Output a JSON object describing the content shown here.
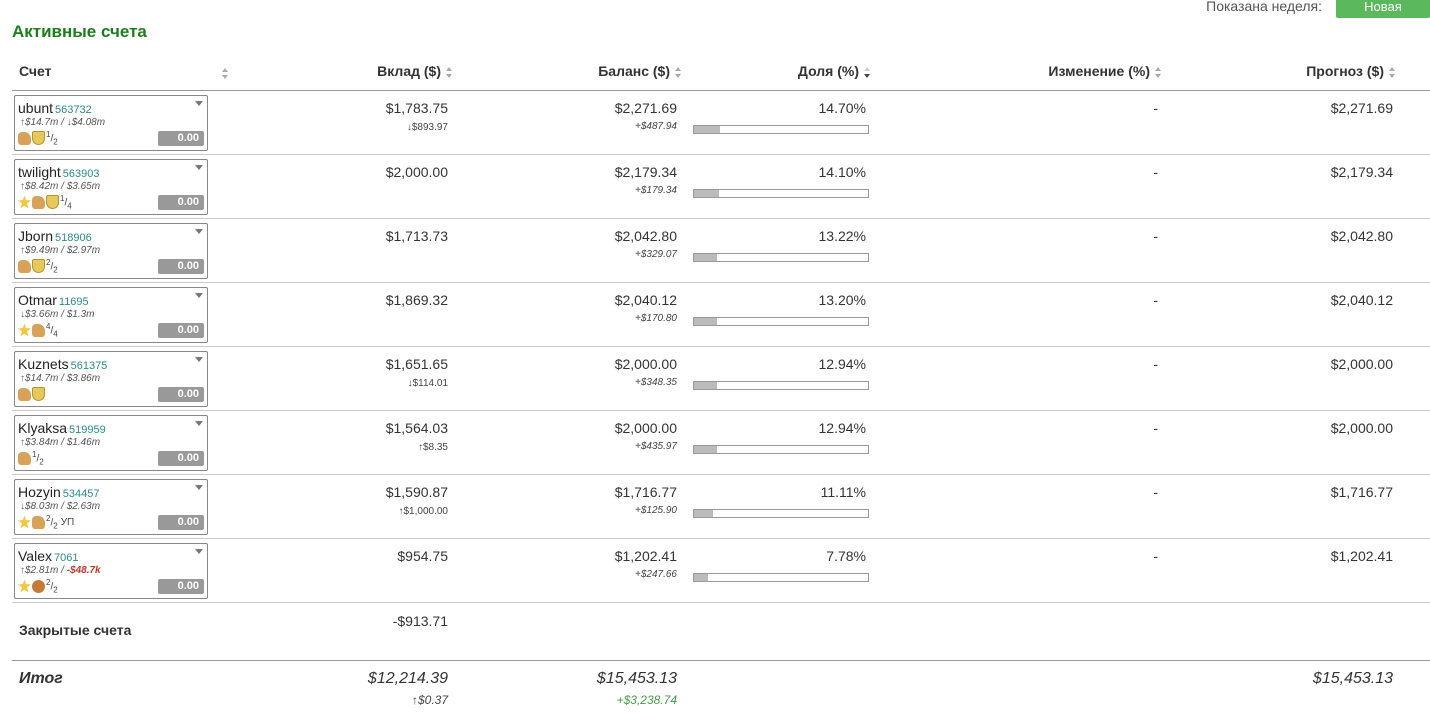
{
  "header": {
    "week_label": "Показана неделя:",
    "new_button": "Новая"
  },
  "title": "Активные счета",
  "columns": [
    "Счет",
    "Вклад ($)",
    "Баланс ($)",
    "Доля (%)",
    "Изменение (%)",
    "Прогноз ($)"
  ],
  "rows": [
    {
      "name": "ubunt",
      "id": "563732",
      "stats_a": "↑$14.7m / ↓$4.08m",
      "stats_b": "",
      "icons": [
        "thumb-icon",
        "shield-icon"
      ],
      "frac_num": "1",
      "frac_den": "2",
      "extra": "",
      "score": "0.00",
      "deposit": "$1,783.75",
      "deposit_delta": "↓$893.97",
      "balance": "$2,271.69",
      "balance_delta": "+$487.94",
      "share": "14.70%",
      "share_value": 14.7,
      "change": "-",
      "forecast": "$2,271.69"
    },
    {
      "name": "twilight",
      "id": "563903",
      "stats_a": "↑$8.42m / $3.65m",
      "stats_b": "",
      "icons": [
        "star-icon",
        "thumb-icon",
        "shield-icon"
      ],
      "frac_num": "1",
      "frac_den": "4",
      "extra": "",
      "score": "0.00",
      "deposit": "$2,000.00",
      "deposit_delta": "",
      "balance": "$2,179.34",
      "balance_delta": "+$179.34",
      "share": "14.10%",
      "share_value": 14.1,
      "change": "-",
      "forecast": "$2,179.34"
    },
    {
      "name": "Jborn",
      "id": "518906",
      "stats_a": "↑$9.49m / $2.97m",
      "stats_b": "",
      "icons": [
        "thumb-icon",
        "shield-icon"
      ],
      "frac_num": "2",
      "frac_den": "2",
      "extra": "",
      "score": "0.00",
      "deposit": "$1,713.73",
      "deposit_delta": "",
      "balance": "$2,042.80",
      "balance_delta": "+$329.07",
      "share": "13.22%",
      "share_value": 13.22,
      "change": "-",
      "forecast": "$2,042.80"
    },
    {
      "name": "Otmar",
      "id": "11695",
      "stats_a": "↓$3.66m / $1.3m",
      "stats_b": "",
      "icons": [
        "star-icon",
        "thumb-icon"
      ],
      "frac_num": "4",
      "frac_den": "4",
      "extra": "",
      "score": "0.00",
      "deposit": "$1,869.32",
      "deposit_delta": "",
      "balance": "$2,040.12",
      "balance_delta": "+$170.80",
      "share": "13.20%",
      "share_value": 13.2,
      "change": "-",
      "forecast": "$2,040.12"
    },
    {
      "name": "Kuznets",
      "id": "561375",
      "stats_a": "↑$14.7m / $3.86m",
      "stats_b": "",
      "icons": [
        "thumb-icon",
        "shield-icon"
      ],
      "frac_num": "",
      "frac_den": "",
      "extra": "",
      "score": "0.00",
      "deposit": "$1,651.65",
      "deposit_delta": "↓$114.01",
      "balance": "$2,000.00",
      "balance_delta": "+$348.35",
      "share": "12.94%",
      "share_value": 12.94,
      "change": "-",
      "forecast": "$2,000.00"
    },
    {
      "name": "Klyaksa",
      "id": "519959",
      "stats_a": "↑$3.84m / $1.46m",
      "stats_b": "",
      "icons": [
        "thumb-icon"
      ],
      "frac_num": "1",
      "frac_den": "2",
      "extra": "",
      "score": "0.00",
      "deposit": "$1,564.03",
      "deposit_delta": "↑$8.35",
      "balance": "$2,000.00",
      "balance_delta": "+$435.97",
      "share": "12.94%",
      "share_value": 12.94,
      "change": "-",
      "forecast": "$2,000.00"
    },
    {
      "name": "Hozyin",
      "id": "534457",
      "stats_a": "↓$8.03m / $2.63m",
      "stats_b": "",
      "icons": [
        "star-icon",
        "thumb-icon"
      ],
      "frac_num": "2",
      "frac_den": "2",
      "extra": "УП",
      "score": "0.00",
      "deposit": "$1,590.87",
      "deposit_delta": "↑$1,000.00",
      "balance": "$1,716.77",
      "balance_delta": "+$125.90",
      "share": "11.11%",
      "share_value": 11.11,
      "change": "-",
      "forecast": "$1,716.77"
    },
    {
      "name": "Valex",
      "id": "7061",
      "stats_a": "↑$2.81m / ",
      "stats_b": "-$48.7k",
      "icons": [
        "star-icon",
        "gem-icon"
      ],
      "frac_num": "2",
      "frac_den": "2",
      "extra": "",
      "score": "0.00",
      "deposit": "$954.75",
      "deposit_delta": "",
      "balance": "$1,202.41",
      "balance_delta": "+$247.66",
      "share": "7.78%",
      "share_value": 7.78,
      "change": "-",
      "forecast": "$1,202.41"
    }
  ],
  "closed": {
    "label": "Закрытые счета",
    "deposit": "-$913.71"
  },
  "total": {
    "label": "Итог",
    "deposit": "$12,214.39",
    "deposit_delta": "↑$0.37",
    "balance": "$15,453.13",
    "balance_delta": "+$3,238.74",
    "forecast": "$15,453.13"
  }
}
